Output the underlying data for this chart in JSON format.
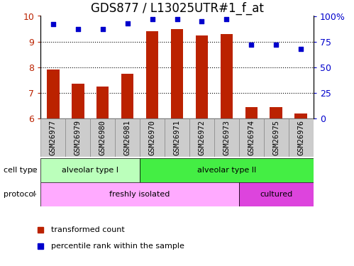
{
  "title": "GDS877 / L13025UTR#1_f_at",
  "samples": [
    "GSM26977",
    "GSM26979",
    "GSM26980",
    "GSM26981",
    "GSM26970",
    "GSM26971",
    "GSM26972",
    "GSM26973",
    "GSM26974",
    "GSM26975",
    "GSM26976"
  ],
  "transformed_counts": [
    7.9,
    7.35,
    7.25,
    7.75,
    9.4,
    9.5,
    9.25,
    9.3,
    6.45,
    6.45,
    6.2
  ],
  "percentile_ranks": [
    92,
    87,
    87,
    93,
    97,
    97,
    95,
    97,
    72,
    72,
    68
  ],
  "ylim_left": [
    6,
    10
  ],
  "ylim_right": [
    0,
    100
  ],
  "yticks_left": [
    6,
    7,
    8,
    9,
    10
  ],
  "yticks_right": [
    0,
    25,
    50,
    75,
    100
  ],
  "bar_color": "#bb2200",
  "scatter_color": "#0000cc",
  "cell_type_labels": [
    {
      "text": "alveolar type I",
      "start": 0,
      "end": 4,
      "color": "#bbffbb"
    },
    {
      "text": "alveolar type II",
      "start": 4,
      "end": 11,
      "color": "#44ee44"
    }
  ],
  "protocol_labels": [
    {
      "text": "freshly isolated",
      "start": 0,
      "end": 8,
      "color": "#ffaaff"
    },
    {
      "text": "cultured",
      "start": 8,
      "end": 11,
      "color": "#dd44dd"
    }
  ],
  "grid_color": "black",
  "grid_linestyle": "dotted",
  "title_fontsize": 12,
  "tick_label_fontsize": 7.5,
  "sample_bg_color": "#cccccc",
  "sample_border_color": "#888888",
  "left_label_color": "#888888"
}
